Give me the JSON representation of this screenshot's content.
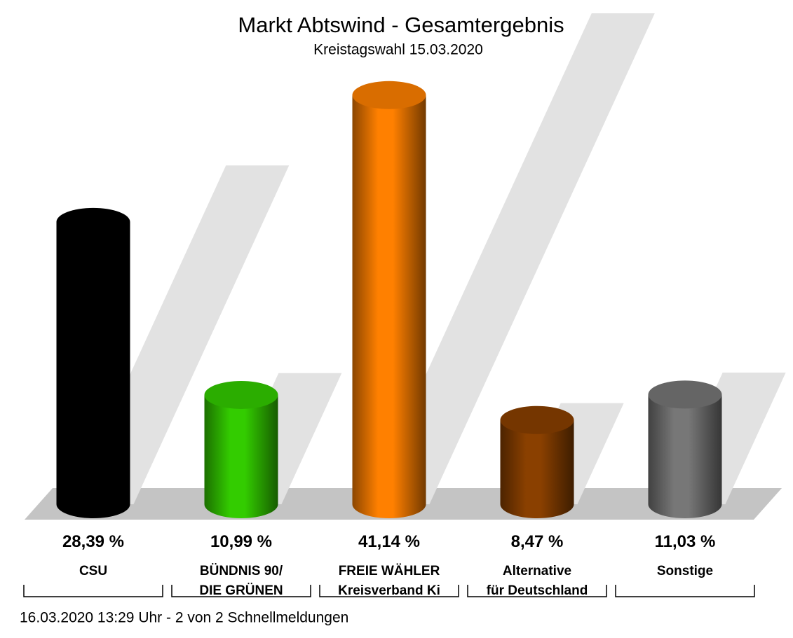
{
  "chart_data": {
    "type": "bar",
    "title": "Markt Abtswind - Gesamtergebnis",
    "subtitle": "Kreistagswahl 15.03.2020",
    "categories": [
      "CSU",
      "BÜNDNIS 90/\nDIE GRÜNEN",
      "FREIE WÄHLER\nKreisverband Ki",
      "Alternative\nfür Deutschland",
      "Sonstige"
    ],
    "values": [
      28.39,
      10.99,
      41.14,
      8.47,
      11.03
    ],
    "value_labels": [
      "28,39 %",
      "10,99 %",
      "41,14 %",
      "8,47 %",
      "11,03 %"
    ],
    "colors": [
      "#000000",
      "#33cc00",
      "#ff8000",
      "#8a4000",
      "#777777"
    ],
    "footer": "16.03.2020 13:29 Uhr - 2 von 2 Schnellmeldungen"
  }
}
